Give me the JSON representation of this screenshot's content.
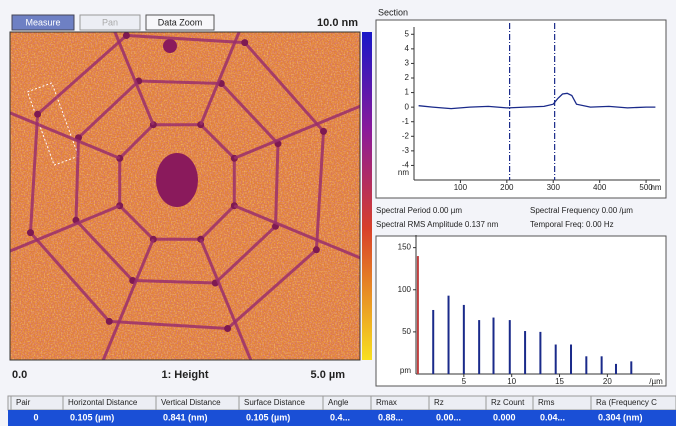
{
  "toolbar": {
    "buttons": [
      "Measure",
      "Pan",
      "Data Zoom"
    ]
  },
  "image": {
    "scale_max": "10.0 nm",
    "x_start": "0.0",
    "channel": "1: Height",
    "x_end": "5.0 µm"
  },
  "section": {
    "title": "Section",
    "chart_data": {
      "type": "line",
      "x": [
        10,
        40,
        80,
        120,
        160,
        200,
        240,
        280,
        300,
        310,
        320,
        330,
        340,
        350,
        380,
        420,
        460,
        500,
        520
      ],
      "values": [
        0.1,
        0,
        -0.1,
        0,
        0.05,
        -0.05,
        0,
        0.05,
        0.2,
        0.6,
        0.9,
        0.95,
        0.8,
        0.2,
        0,
        0.05,
        -0.05,
        0,
        0
      ],
      "color": "#1a2a8a",
      "cursors": [
        206,
        303
      ],
      "xlim": [
        0,
        530
      ],
      "ylim": [
        -5,
        5.5
      ],
      "xticks": [
        100,
        200,
        300,
        400,
        500
      ],
      "yticks": [
        5,
        4,
        3,
        2,
        1,
        0,
        -1,
        -2,
        -3,
        -4
      ],
      "x_unit": "nm",
      "y_unit": "nm"
    }
  },
  "spectral": {
    "period": "Spectral Period 0.00 µm",
    "frequency": "Spectral Frequency 0.00 /µm",
    "rms_amplitude": "Spectral RMS Amplitude 0.137 nm",
    "temporal_freq": "Temporal Freq: 0.00 Hz"
  },
  "spectrum": {
    "chart_data": {
      "type": "bar",
      "x": [
        0.2,
        1.8,
        3.4,
        5,
        6.6,
        8.1,
        9.8,
        11.4,
        13,
        14.6,
        16.2,
        17.8,
        19.4,
        20.9,
        22.5
      ],
      "values": [
        140,
        76,
        93,
        82,
        64,
        67,
        64,
        51,
        50,
        35,
        35,
        21,
        21,
        12,
        15
      ],
      "color": "#1a2a8a",
      "xlim": [
        0,
        25.5
      ],
      "ylim": [
        0,
        165
      ],
      "xticks": [
        5,
        10,
        15,
        20
      ],
      "yticks": [
        150,
        100,
        50
      ],
      "x_unit": "/µm",
      "y_unit": "pm"
    }
  },
  "table": {
    "header": [
      "Pair",
      "Horizontal Distance",
      "Vertical Distance",
      "Surface Distance",
      "Angle",
      "Rmax",
      "Rz",
      "Rz Count",
      "Rms",
      "Ra (Frequency C"
    ],
    "rows": [
      [
        "0",
        "0.105 (µm)",
        "0.841 (nm)",
        "0.105 (µm)",
        "0.4...",
        "0.88...",
        "0.00...",
        "0.000",
        "0.04...",
        "0.304 (nm)"
      ]
    ]
  }
}
